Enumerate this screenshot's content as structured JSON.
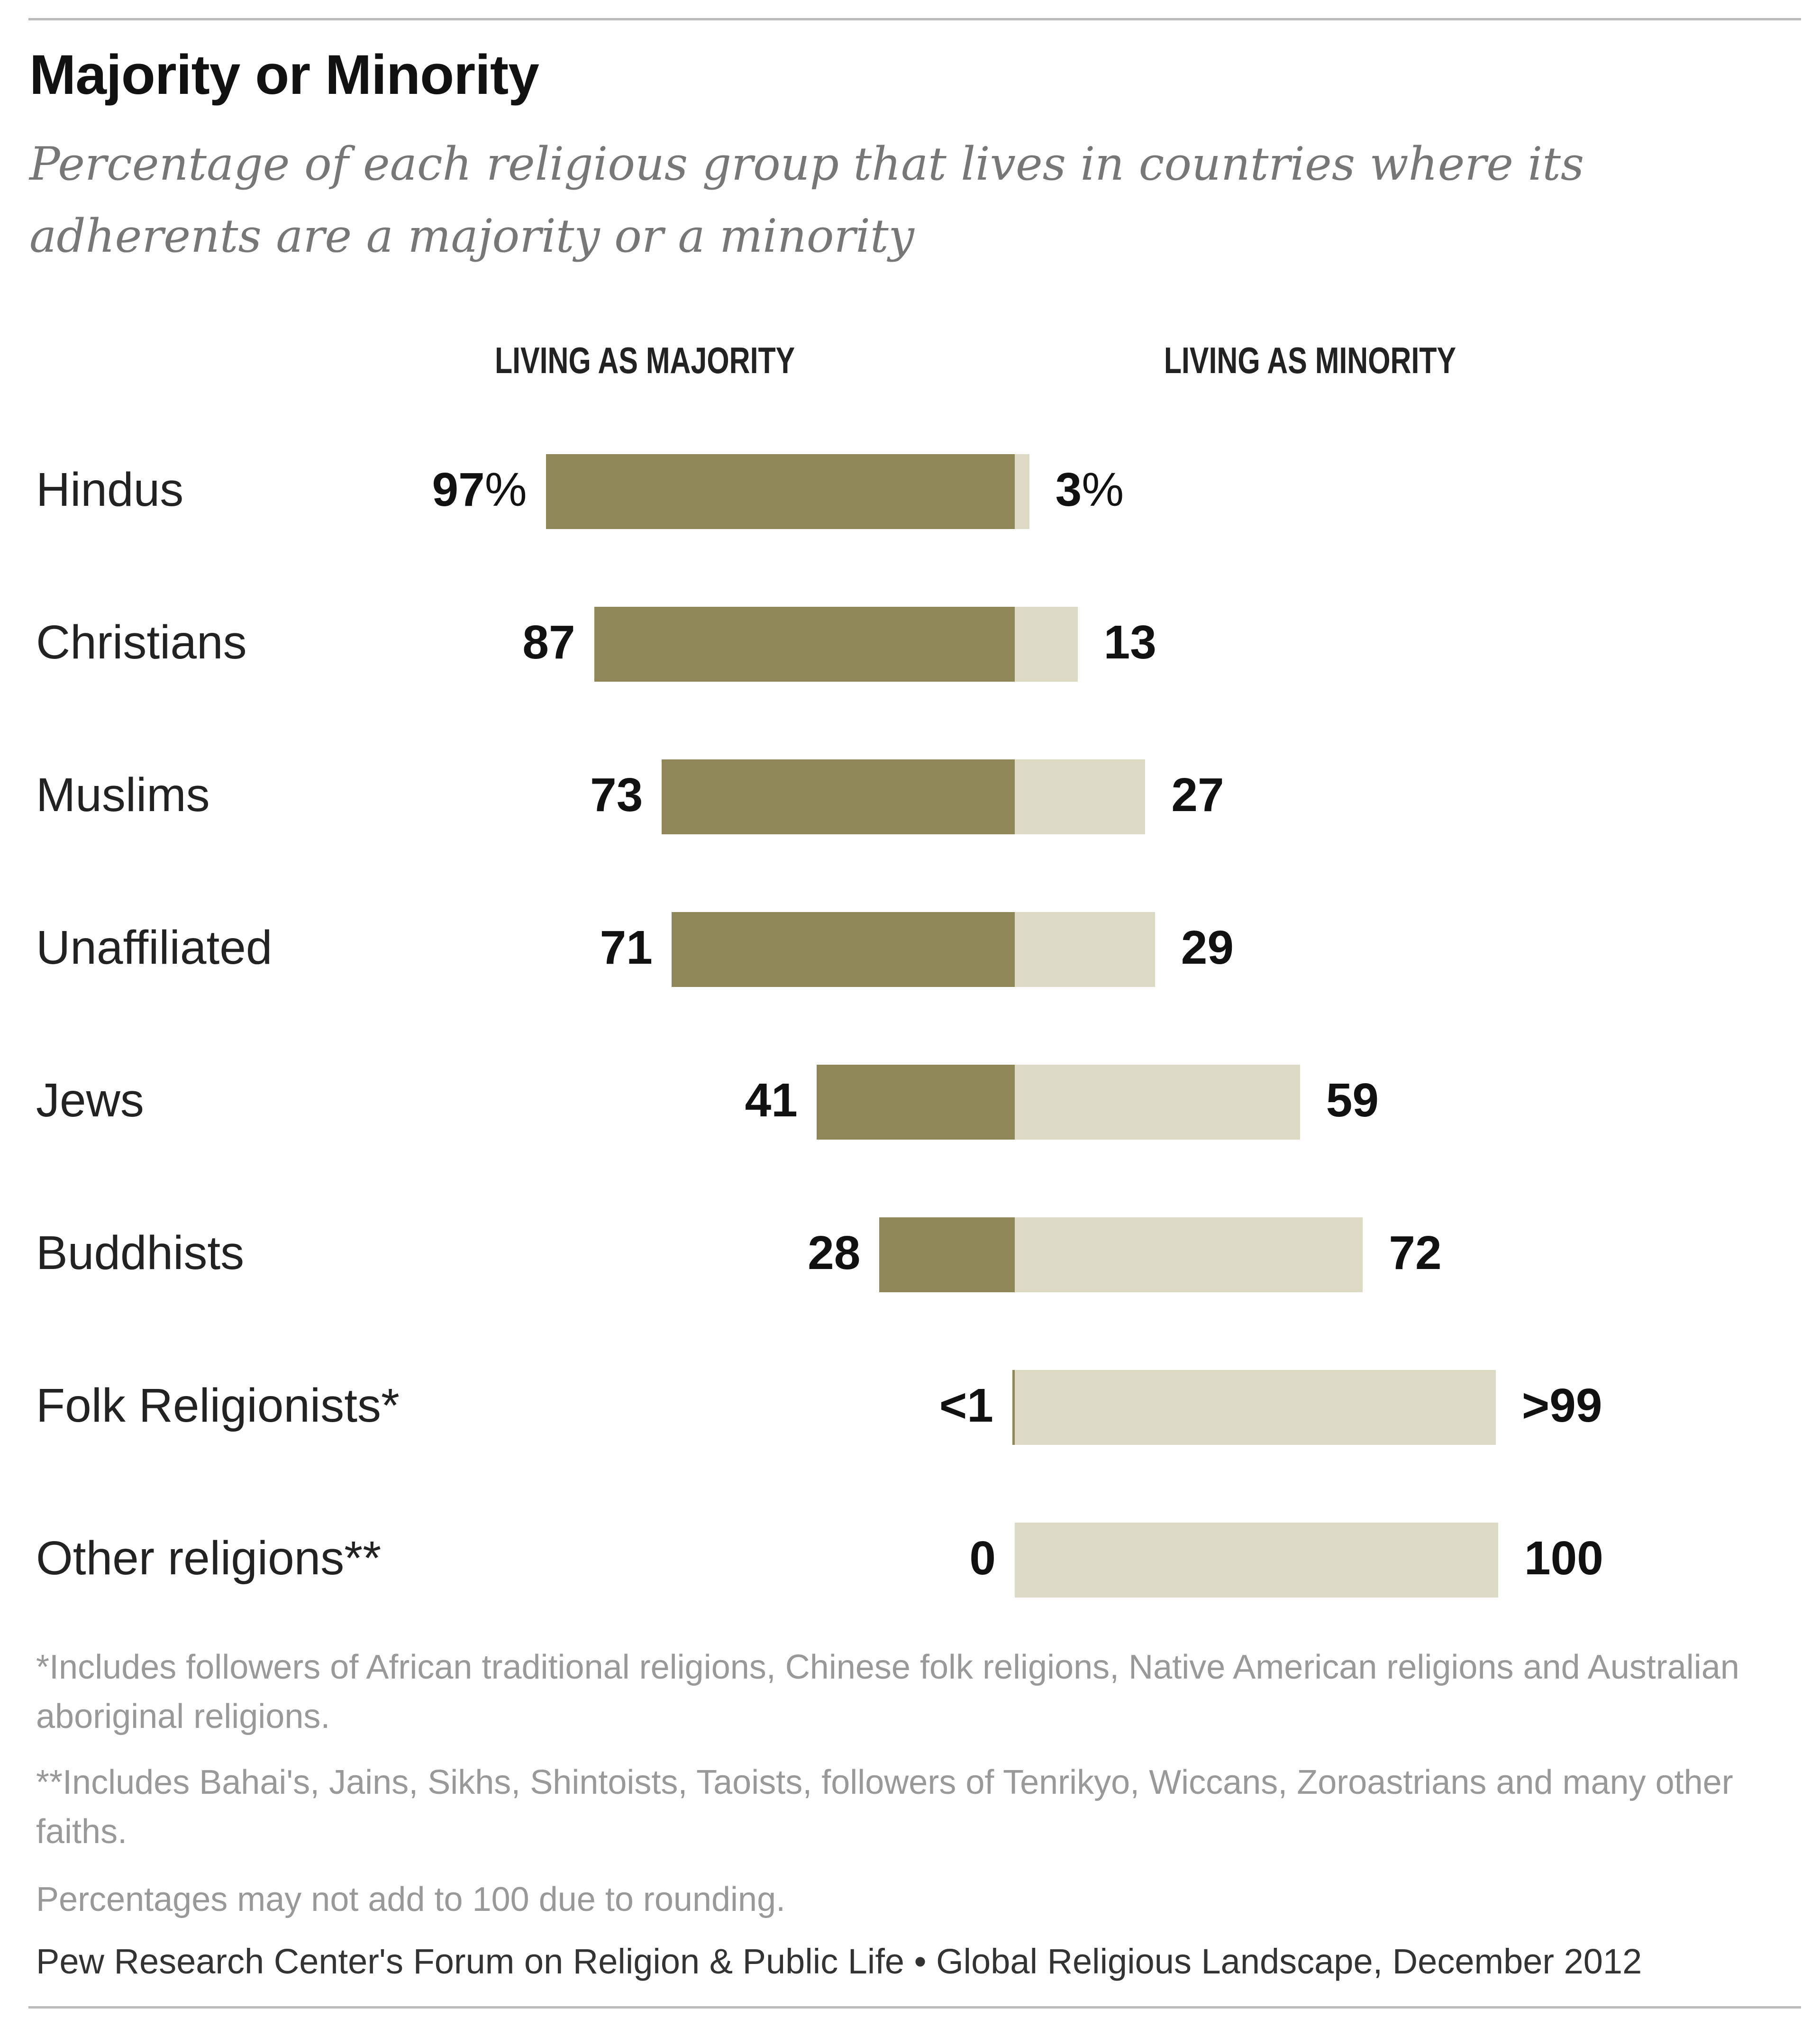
{
  "chart_data": {
    "type": "bar",
    "subtype": "diverging-stacked-horizontal",
    "title": "Majority or Minority",
    "subtitle": "Percentage of each religious group that lives in countries where its adherents are a majority or a minority",
    "column_headers": [
      "LIVING AS MAJORITY",
      "LIVING AS MINORITY"
    ],
    "categories": [
      "Hindus",
      "Christians",
      "Muslims",
      "Unaffiliated",
      "Jews",
      "Buddhists",
      "Folk Religionists*",
      "Other religions**"
    ],
    "series": [
      {
        "name": "Living as majority",
        "color": "#8f8758",
        "values": [
          97,
          87,
          73,
          71,
          41,
          28,
          0.5,
          0
        ],
        "labels": [
          "97",
          "87",
          "73",
          "71",
          "41",
          "28",
          "<1",
          "0"
        ]
      },
      {
        "name": "Living as minority",
        "color": "#dcd9c5",
        "values": [
          3,
          13,
          27,
          29,
          59,
          72,
          99.5,
          100
        ],
        "labels": [
          "3",
          "13",
          "27",
          "29",
          "59",
          "72",
          ">99",
          "100"
        ]
      }
    ],
    "first_row_suffix": "%",
    "xlim": [
      0,
      100
    ]
  },
  "footnotes": [
    "*Includes followers of African traditional religions, Chinese folk religions, Native American religions and Australian aboriginal religions.",
    "**Includes Bahai's, Jains, Sikhs, Shintoists, Taoists, followers of Tenrikyo, Wiccans, Zoroastrians and many other faiths.",
    "Percentages may not add to 100 due to rounding."
  ],
  "source": "Pew Research Center's Forum on Religion & Public Life • Global Religious Landscape, December 2012"
}
